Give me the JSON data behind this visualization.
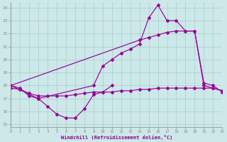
{
  "xlabel": "Windchill (Refroidissement éolien,°C)",
  "bg_color": "#cce8e8",
  "line_color": "#990099",
  "grid_color": "#aacccc",
  "xlim": [
    0,
    23
  ],
  "ylim": [
    14.8,
    24.4
  ],
  "yticks": [
    15,
    16,
    17,
    18,
    19,
    20,
    21,
    22,
    23,
    24
  ],
  "xticks": [
    0,
    1,
    2,
    3,
    4,
    5,
    6,
    7,
    8,
    9,
    10,
    11,
    12,
    13,
    14,
    15,
    16,
    17,
    18,
    19,
    20,
    21,
    22,
    23
  ],
  "line_dip_x": [
    0,
    1,
    2,
    3,
    4,
    5,
    6,
    7,
    8,
    9,
    10,
    11
  ],
  "line_dip_y": [
    18.0,
    17.8,
    17.2,
    17.0,
    16.4,
    15.8,
    15.5,
    15.5,
    16.2,
    17.3,
    17.5,
    18.0
  ],
  "line_rise_x": [
    0,
    3,
    9,
    10,
    11,
    12,
    13,
    14,
    15,
    16,
    17,
    18,
    19,
    20,
    21,
    22,
    23
  ],
  "line_rise_y": [
    18.0,
    17.0,
    18.0,
    19.5,
    20.0,
    20.5,
    20.8,
    21.2,
    23.2,
    24.2,
    23.0,
    23.0,
    22.2,
    22.2,
    18.2,
    18.0,
    17.5
  ],
  "line_diag_x": [
    0,
    14,
    15,
    16,
    17,
    18,
    19,
    20,
    21,
    22,
    23
  ],
  "line_diag_y": [
    18.0,
    21.5,
    21.7,
    21.9,
    22.1,
    22.2,
    22.2,
    22.2,
    18.0,
    17.8,
    17.6
  ],
  "line_flat_x": [
    0,
    1,
    2,
    3,
    4,
    5,
    6,
    7,
    8,
    9,
    10,
    11,
    12,
    13,
    14,
    15,
    16,
    17,
    18,
    19,
    20,
    21,
    22,
    23
  ],
  "line_flat_y": [
    17.8,
    17.7,
    17.4,
    17.2,
    17.2,
    17.2,
    17.2,
    17.3,
    17.4,
    17.5,
    17.5,
    17.5,
    17.6,
    17.6,
    17.7,
    17.7,
    17.8,
    17.8,
    17.8,
    17.8,
    17.8,
    17.8,
    17.8,
    17.6
  ]
}
